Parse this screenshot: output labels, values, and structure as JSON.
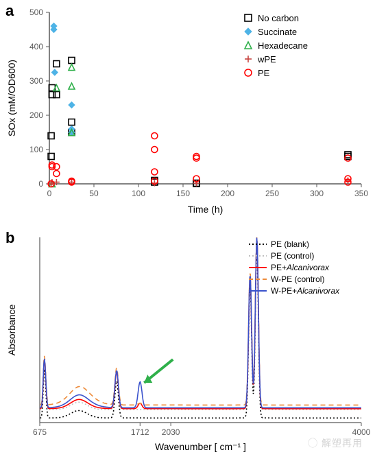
{
  "panelA": {
    "label": "a",
    "type": "scatter",
    "xlabel": "Time (h)",
    "ylabel": "SOx (mM/OD600)",
    "xlim": [
      0,
      350
    ],
    "ylim": [
      0,
      500
    ],
    "xtick_step": 50,
    "ytick_step": 100,
    "background_color": "#ffffff",
    "tick_color": "#595959",
    "axis_color": "#595959",
    "label_fontsize": 14,
    "tick_fontsize": 12,
    "legend_fontsize": 13,
    "legend_position": "top-right",
    "series": [
      {
        "name": "No carbon",
        "marker": "square-open",
        "color": "#000000",
        "points": [
          [
            2,
            140
          ],
          [
            2,
            80
          ],
          [
            3,
            280
          ],
          [
            3,
            260
          ],
          [
            8,
            350
          ],
          [
            8,
            260
          ],
          [
            25,
            360
          ],
          [
            25,
            180
          ],
          [
            25,
            150
          ],
          [
            118,
            10
          ],
          [
            118,
            5
          ],
          [
            165,
            2
          ],
          [
            165,
            1
          ],
          [
            335,
            85
          ],
          [
            335,
            80
          ]
        ]
      },
      {
        "name": "Succinate",
        "marker": "diamond-filled",
        "color": "#4eb3e6",
        "points": [
          [
            5,
            460
          ],
          [
            5,
            450
          ],
          [
            6,
            325
          ],
          [
            25,
            230
          ],
          [
            25,
            160
          ],
          [
            25,
            150
          ]
        ]
      },
      {
        "name": "Hexadecane",
        "marker": "triangle-open",
        "color": "#2fb04a",
        "points": [
          [
            3,
            0
          ],
          [
            8,
            280
          ],
          [
            25,
            340
          ],
          [
            25,
            285
          ],
          [
            25,
            150
          ]
        ]
      },
      {
        "name": "wPE",
        "marker": "plus",
        "color": "#c74440",
        "points": [
          [
            2,
            0
          ],
          [
            3,
            5
          ],
          [
            8,
            5
          ],
          [
            25,
            5
          ],
          [
            118,
            2
          ],
          [
            165,
            2
          ],
          [
            335,
            10
          ]
        ]
      },
      {
        "name": "PE",
        "marker": "circle-open",
        "color": "#ff0000",
        "points": [
          [
            2,
            0
          ],
          [
            3,
            50
          ],
          [
            3,
            55
          ],
          [
            8,
            50
          ],
          [
            8,
            30
          ],
          [
            25,
            5
          ],
          [
            25,
            8
          ],
          [
            118,
            140
          ],
          [
            118,
            100
          ],
          [
            118,
            35
          ],
          [
            118,
            8
          ],
          [
            165,
            80
          ],
          [
            165,
            75
          ],
          [
            165,
            15
          ],
          [
            335,
            75
          ],
          [
            335,
            15
          ],
          [
            335,
            5
          ]
        ]
      }
    ]
  },
  "panelB": {
    "label": "b",
    "type": "line",
    "xlabel": "Wavenumber [ cm⁻¹ ]",
    "ylabel": "Absorbance",
    "xticks": [
      675,
      1712,
      2030,
      4000
    ],
    "background_color": "#ffffff",
    "tick_color": "#595959",
    "arrow_color": "#2fb04a",
    "arrow_target_x": 1712,
    "label_fontsize": 14,
    "tick_fontsize": 12,
    "legend_fontsize": 12,
    "legend_position": "top-right",
    "series": [
      {
        "name": "PE (blank)",
        "color": "#000000",
        "style": "dotted",
        "italic": false
      },
      {
        "name": "PE (control)",
        "color": "#bfbfbf",
        "style": "dotted",
        "italic": false
      },
      {
        "name": "PE+Alcanivorax",
        "color": "#ff0000",
        "style": "solid",
        "italic_part": "Alcanivorax"
      },
      {
        "name": "W-PE (control)",
        "color": "#ed8b3a",
        "style": "dashed",
        "italic": false
      },
      {
        "name": "W-PE+Alcanivorax",
        "color": "#3a52cc",
        "style": "solid",
        "italic_part": "Alcanivorax"
      }
    ]
  },
  "watermark": {
    "text": "解塑再用",
    "prefix_icon": "wechat-icon",
    "color": "#d4d4d4"
  }
}
